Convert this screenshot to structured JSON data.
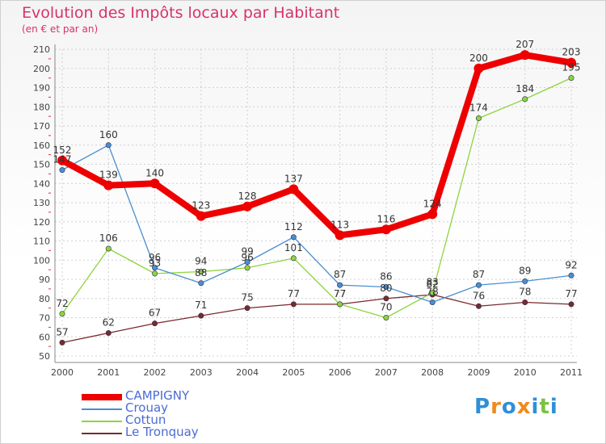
{
  "chart_data": {
    "type": "line",
    "title": "Evolution des Impôts locaux par Habitant",
    "subtitle": "(en € et par an)",
    "xlabel": "",
    "ylabel": "",
    "ylim": [
      50,
      210
    ],
    "yticks": [
      50,
      60,
      70,
      80,
      90,
      100,
      110,
      120,
      130,
      140,
      150,
      160,
      170,
      180,
      190,
      200,
      210
    ],
    "categories": [
      "2000",
      "2001",
      "2002",
      "2003",
      "2004",
      "2005",
      "2006",
      "2007",
      "2008",
      "2009",
      "2010",
      "2011"
    ],
    "grid": true,
    "legend_position": "bottom-left",
    "series": [
      {
        "name": "CAMPIGNY",
        "color": "#ee0000",
        "values": [
          152,
          139,
          140,
          123,
          128,
          137,
          113,
          116,
          124,
          200,
          207,
          203
        ],
        "labels": [
          "152",
          "139",
          "140",
          "123",
          "128",
          "137",
          "113",
          "116",
          "124",
          "200",
          "207",
          "203"
        ]
      },
      {
        "name": "Crouay",
        "color": "#4a8fd0",
        "values": [
          147,
          160,
          96,
          88,
          99,
          112,
          87,
          86,
          78,
          87,
          89,
          92
        ],
        "labels": [
          "147",
          "160",
          "96",
          "88",
          "99",
          "112",
          "87",
          "86",
          "78",
          "87",
          "89",
          "92"
        ]
      },
      {
        "name": "Cottun",
        "color": "#8ed43c",
        "values": [
          72,
          106,
          93,
          94,
          96,
          101,
          77,
          70,
          83,
          174,
          184,
          195
        ],
        "labels": [
          "72",
          "106",
          "93",
          "94",
          "96",
          "101",
          "77",
          "70",
          "83",
          "174",
          "184",
          "195"
        ]
      },
      {
        "name": "Le Tronquay",
        "color": "#7a2a2a",
        "values": [
          57,
          62,
          67,
          71,
          75,
          77,
          77,
          80,
          82,
          76,
          78,
          77
        ],
        "labels": [
          "57",
          "62",
          "67",
          "71",
          "75",
          "77",
          "77",
          "80",
          "82",
          "76",
          "78",
          "77"
        ]
      }
    ]
  },
  "logo": {
    "text": "Proxiti",
    "letters": [
      {
        "ch": "P",
        "color": "#2f8fd8"
      },
      {
        "ch": "r",
        "color": "#f08a1c"
      },
      {
        "ch": "o",
        "color": "#2f8fd8"
      },
      {
        "ch": "x",
        "color": "#f08a1c"
      },
      {
        "ch": "i",
        "color": "#2f8fd8"
      },
      {
        "ch": "t",
        "color": "#7cc242"
      },
      {
        "ch": "i",
        "color": "#2f8fd8"
      }
    ]
  }
}
